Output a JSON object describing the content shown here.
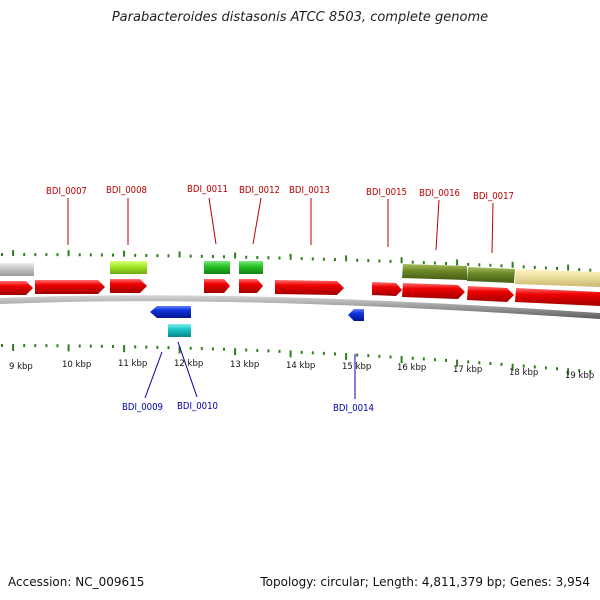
{
  "title": "Parabacteroides distasonis ATCC 8503, complete genome",
  "footer": {
    "accession": "Accession: NC_009615",
    "summary": "Topology: circular; Length: 4,811,379 bp; Genes: 3,954"
  },
  "colors": {
    "forward_cds": "#ee0000",
    "reverse_cds": "#1133dd",
    "tick": "#2e7d1e",
    "label_forward": "#bb0000",
    "label_reverse": "#0000aa",
    "backbone": "#888888"
  },
  "kbp_labels": [
    "9 kbp",
    "10 kbp",
    "11 kbp",
    "12 kbp",
    "13 kbp",
    "14 kbp",
    "15 kbp",
    "16 kbp",
    "17 kbp",
    "18 kbp",
    "19 kbp"
  ],
  "genes_top": [
    {
      "name": "BDI_0007"
    },
    {
      "name": "BDI_0008"
    },
    {
      "name": "BDI_0011"
    },
    {
      "name": "BDI_0012"
    },
    {
      "name": "BDI_0013"
    },
    {
      "name": "BDI_0015"
    },
    {
      "name": "BDI_0016"
    },
    {
      "name": "BDI_0017"
    }
  ],
  "genes_bottom": [
    {
      "name": "BDI_0009"
    },
    {
      "name": "BDI_0010"
    },
    {
      "name": "BDI_0014"
    }
  ]
}
